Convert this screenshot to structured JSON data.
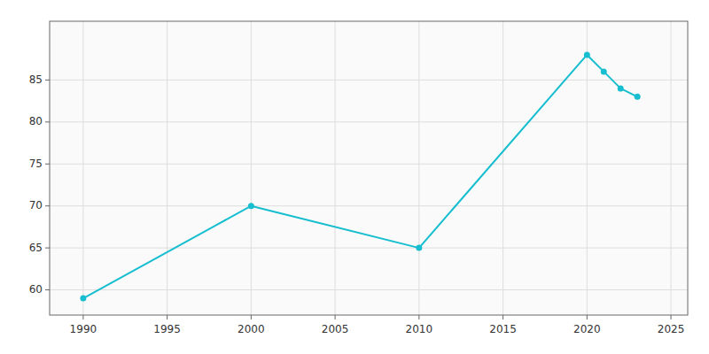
{
  "chart_data": {
    "type": "line",
    "x": [
      1990,
      2000,
      2010,
      2020,
      2021,
      2022,
      2023
    ],
    "values": [
      59,
      70,
      65,
      88,
      86,
      84,
      83
    ],
    "color": "#17BECF",
    "marker": "circle",
    "xlim": [
      1988,
      2026
    ],
    "ylim": [
      57,
      92
    ],
    "xticks": [
      1990,
      1995,
      2000,
      2005,
      2010,
      2015,
      2020,
      2025
    ],
    "yticks": [
      60,
      65,
      70,
      75,
      80,
      85
    ],
    "grid": true
  }
}
